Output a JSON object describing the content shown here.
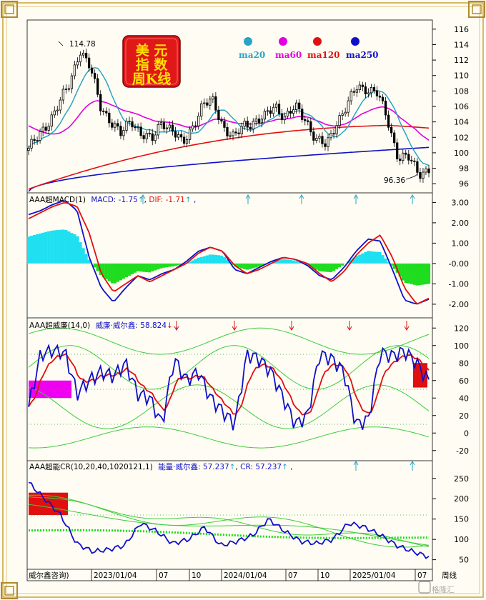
{
  "badge": {
    "line1": "美  元",
    "line2": "指  数",
    "line3": "周K线"
  },
  "ma_legend": [
    {
      "label": "ma20",
      "color": "#2aa3c8"
    },
    {
      "label": "ma60",
      "color": "#e000e0"
    },
    {
      "label": "ma120",
      "color": "#e01010"
    },
    {
      "label": "ma250",
      "color": "#1010c8"
    }
  ],
  "price_annotations": {
    "high": "114.78",
    "low": "96.36"
  },
  "macd_header": {
    "name": "AAA超MACD(1)",
    "macd": "MACD: -1.75",
    "dif": "DIF: -1.71",
    "tail": ","
  },
  "wr_header": {
    "name": "AAA超威廉(14,0)",
    "value": "威廉·威尔鑫: 58.824",
    "tail": ","
  },
  "cr_header": {
    "name": "AAA超能CR(10,20,40,1020121,1)",
    "energy": "能量·威尔鑫: 57.237",
    "cr": "CR: 57.237",
    "tail": ","
  },
  "x_axis": {
    "labels": [
      "威尔鑫咨询)",
      "2023/01/04",
      "07",
      "10",
      "2024/01/04",
      "07",
      "10",
      "2025/01/04",
      "07"
    ],
    "period": "周线"
  },
  "watermark": "格隆汇",
  "chart_data": [
    {
      "type": "candlestick",
      "title": "美元指数 周K线",
      "ylim": [
        95,
        117
      ],
      "y_ticks": [
        96,
        98,
        100,
        102,
        104,
        106,
        108,
        110,
        112,
        114,
        116
      ],
      "key_points": [
        {
          "label": "114.78",
          "value": 114.78,
          "date": "2022/09"
        },
        {
          "label": "96.36",
          "value": 96.36,
          "date": "2025/07"
        }
      ],
      "close_path": [
        [
          "2022/04",
          100.6
        ],
        [
          "2022/05",
          102.0
        ],
        [
          "2022/06",
          104.2
        ],
        [
          "2022/07",
          106.5
        ],
        [
          "2022/08",
          108.8
        ],
        [
          "2022/09",
          113.5
        ],
        [
          "2022/10",
          111.0
        ],
        [
          "2022/11",
          106.0
        ],
        [
          "2022/12",
          104.2
        ],
        [
          "2023/01",
          102.3
        ],
        [
          "2023/02",
          104.3
        ],
        [
          "2023/03",
          102.5
        ],
        [
          "2023/04",
          101.5
        ],
        [
          "2023/05",
          104.2
        ],
        [
          "2023/06",
          102.9
        ],
        [
          "2023/07",
          101.0
        ],
        [
          "2023/08",
          103.6
        ],
        [
          "2023/09",
          106.2
        ],
        [
          "2023/10",
          106.6
        ],
        [
          "2023/11",
          103.4
        ],
        [
          "2023/12",
          101.8
        ],
        [
          "2024/01",
          103.6
        ],
        [
          "2024/02",
          104.1
        ],
        [
          "2024/03",
          104.5
        ],
        [
          "2024/04",
          106.2
        ],
        [
          "2024/05",
          104.6
        ],
        [
          "2024/06",
          105.8
        ],
        [
          "2024/07",
          104.4
        ],
        [
          "2024/08",
          101.7
        ],
        [
          "2024/09",
          100.8
        ],
        [
          "2024/10",
          104.0
        ],
        [
          "2024/11",
          106.0
        ],
        [
          "2024/12",
          108.5
        ],
        [
          "2025/01",
          108.4
        ],
        [
          "2025/02",
          107.6
        ],
        [
          "2025/03",
          104.2
        ],
        [
          "2025/04",
          99.5
        ],
        [
          "2025/05",
          99.3
        ],
        [
          "2025/06",
          97.4
        ],
        [
          "2025/07",
          97.9
        ]
      ],
      "moving_averages_end": {
        "ma20": 99.0,
        "ma60": 102.8,
        "ma120": 103.6,
        "ma250": 100.7
      }
    },
    {
      "type": "line",
      "title": "AAA超MACD(1)",
      "ylim": [
        -2.6,
        3.4
      ],
      "y_ticks": [
        "3.00",
        "2.00",
        "1.00",
        "-0.00",
        "-1.00",
        "-2.00"
      ],
      "series": [
        {
          "name": "MACD",
          "values": [
            2.4,
            2.6,
            2.9,
            3.1,
            2.6,
            0.3,
            -1.2,
            -1.9,
            -1.2,
            -0.6,
            -0.8,
            -0.5,
            -0.3,
            0.1,
            0.6,
            0.8,
            0.6,
            -0.3,
            -0.5,
            -0.2,
            0.1,
            0.3,
            0.2,
            -0.1,
            -0.6,
            -0.8,
            -0.2,
            0.6,
            1.2,
            1.1,
            -0.3,
            -1.8,
            -2.0,
            -1.75
          ]
        },
        {
          "name": "DIF",
          "values": [
            2.2,
            2.5,
            2.8,
            3.0,
            2.8,
            1.5,
            -0.5,
            -1.4,
            -1.0,
            -0.6,
            -0.9,
            -0.6,
            -0.3,
            0.0,
            0.5,
            0.8,
            0.6,
            -0.1,
            -0.5,
            -0.3,
            0.0,
            0.3,
            0.2,
            0.0,
            -0.5,
            -0.9,
            -0.4,
            0.4,
            1.0,
            1.4,
            0.3,
            -1.2,
            -2.0,
            -1.71
          ]
        }
      ],
      "current": {
        "MACD": -1.75,
        "DIF": -1.71
      }
    },
    {
      "type": "line",
      "title": "AAA超威廉(14,0)",
      "ylim": [
        -30,
        130
      ],
      "y_ticks": [
        120,
        100,
        80,
        60,
        40,
        20,
        0,
        -20
      ],
      "series": [
        {
          "name": "威廉·威尔鑫",
          "values": [
            30,
            90,
            95,
            92,
            45,
            60,
            70,
            65,
            80,
            45,
            40,
            10,
            85,
            60,
            70,
            40,
            25,
            10,
            90,
            85,
            70,
            40,
            10,
            20,
            90,
            85,
            70,
            10,
            15,
            92,
            88,
            94,
            80,
            58.824
          ]
        }
      ],
      "current": 58.824
    },
    {
      "type": "line",
      "title": "AAA超能CR(10,20,40,1020121,1)",
      "ylim": [
        30,
        290
      ],
      "y_ticks": [
        250,
        200,
        150,
        100,
        50
      ],
      "series": [
        {
          "name": "能量·威尔鑫",
          "values": [
            240,
            200,
            160,
            90,
            70,
            75,
            85,
            140,
            120,
            90,
            100,
            130,
            85,
            95,
            110,
            150,
            120,
            95,
            90,
            100,
            140,
            130,
            110,
            85,
            70,
            57.237
          ]
        },
        {
          "name": "CR",
          "values": [
            240,
            200,
            160,
            90,
            70,
            75,
            85,
            140,
            120,
            90,
            100,
            130,
            85,
            95,
            110,
            150,
            120,
            95,
            90,
            100,
            140,
            130,
            110,
            85,
            70,
            57.237
          ]
        }
      ],
      "current": {
        "能量": 57.237,
        "CR": 57.237
      }
    }
  ]
}
